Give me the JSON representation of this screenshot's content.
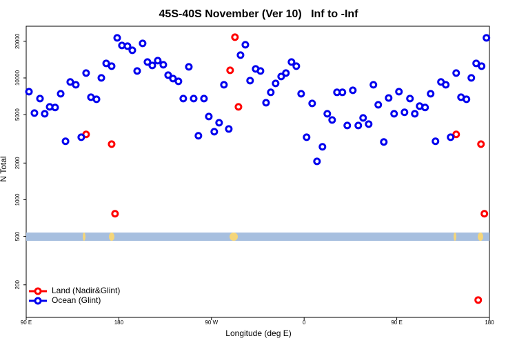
{
  "chart_data": {
    "type": "scatter",
    "title": "45S-40S November (Ver 10)   Inf to -Inf",
    "x_label": "Longitude (deg E)",
    "y_label": "N Total",
    "log_y": true,
    "legend": "bottom-left",
    "xlim": [
      90,
      540
    ],
    "ylim": [
      108,
      26600
    ],
    "xticks": [
      {
        "value": 90,
        "label": "90 E"
      },
      180,
      {
        "value": 270,
        "label": "90 W"
      },
      {
        "value": 360,
        "label": "0"
      },
      {
        "value": 450,
        "label": "90 E"
      },
      {
        "value": 540,
        "label": "180"
      }
    ],
    "yticks": [
      200,
      500,
      1000,
      2000,
      5000,
      10000,
      20000
    ],
    "series": [
      {
        "name": "Land (Nadir&Glint)",
        "color": "#ff0000",
        "x": [
          148.2,
          173,
          176.3,
          288.1,
          292.8,
          296.2,
          507.7,
          531.8,
          535.1,
          529.1
        ],
        "values": [
          3440,
          2860,
          767,
          11560,
          21630,
          5790,
          3440,
          2860,
          767,
          150
        ]
      },
      {
        "name": "Ocean (Glint)",
        "color": "#0000ee",
        "x": [
          92.7,
          98,
          103.4,
          108,
          112.8,
          118.1,
          123.5,
          128.2,
          132.8,
          138.2,
          143.5,
          148.2,
          152.9,
          158.3,
          163,
          167.7,
          173,
          178.4,
          183,
          188.4,
          193.1,
          197.8,
          203.1,
          207.8,
          212.5,
          217.8,
          223.2,
          227.9,
          232.6,
          237.9,
          242.6,
          248,
          252.7,
          257.3,
          262.7,
          267.4,
          272.7,
          277.4,
          282.1,
          286.8,
          298.2,
          302.9,
          307.5,
          312.9,
          317.6,
          323,
          327.6,
          332.3,
          337.7,
          342.3,
          347.7,
          352.4,
          357.1,
          362.4,
          367.8,
          372.5,
          377.8,
          382.5,
          387.2,
          391.9,
          397.2,
          401.9,
          407.3,
          412.6,
          417.3,
          422.7,
          427.3,
          432,
          437.4,
          442.1,
          447.4,
          452.1,
          457.5,
          462.8,
          467.5,
          472.2,
          477.5,
          482.9,
          487.6,
          492.9,
          497.6,
          502.3,
          507.7,
          512.4,
          517.7,
          522.4,
          527.1,
          532.4,
          537.1
        ],
        "values": [
          7710,
          5150,
          6770,
          5080,
          5790,
          5720,
          7420,
          3020,
          9270,
          8790,
          3260,
          10970,
          6950,
          6680,
          10010,
          13180,
          12500,
          21340,
          18490,
          18240,
          16880,
          11410,
          19230,
          13520,
          12670,
          13870,
          12830,
          10550,
          9890,
          9380,
          6770,
          12340,
          6770,
          3350,
          6770,
          4820,
          3620,
          4290,
          8790,
          3810,
          15410,
          18740,
          9510,
          11860,
          11410,
          6260,
          7620,
          9020,
          10280,
          10970,
          13520,
          12500,
          7420,
          3260,
          6180,
          2065,
          2720,
          5080,
          4520,
          7620,
          7620,
          4070,
          7920,
          4070,
          4700,
          4180,
          8790,
          6020,
          2980,
          6850,
          5080,
          7710,
          5220,
          6770,
          5080,
          5870,
          5720,
          7420,
          3020,
          9270,
          8790,
          3260,
          10970,
          6950,
          6680,
          10010,
          13180,
          12500,
          21340
        ]
      }
    ]
  }
}
